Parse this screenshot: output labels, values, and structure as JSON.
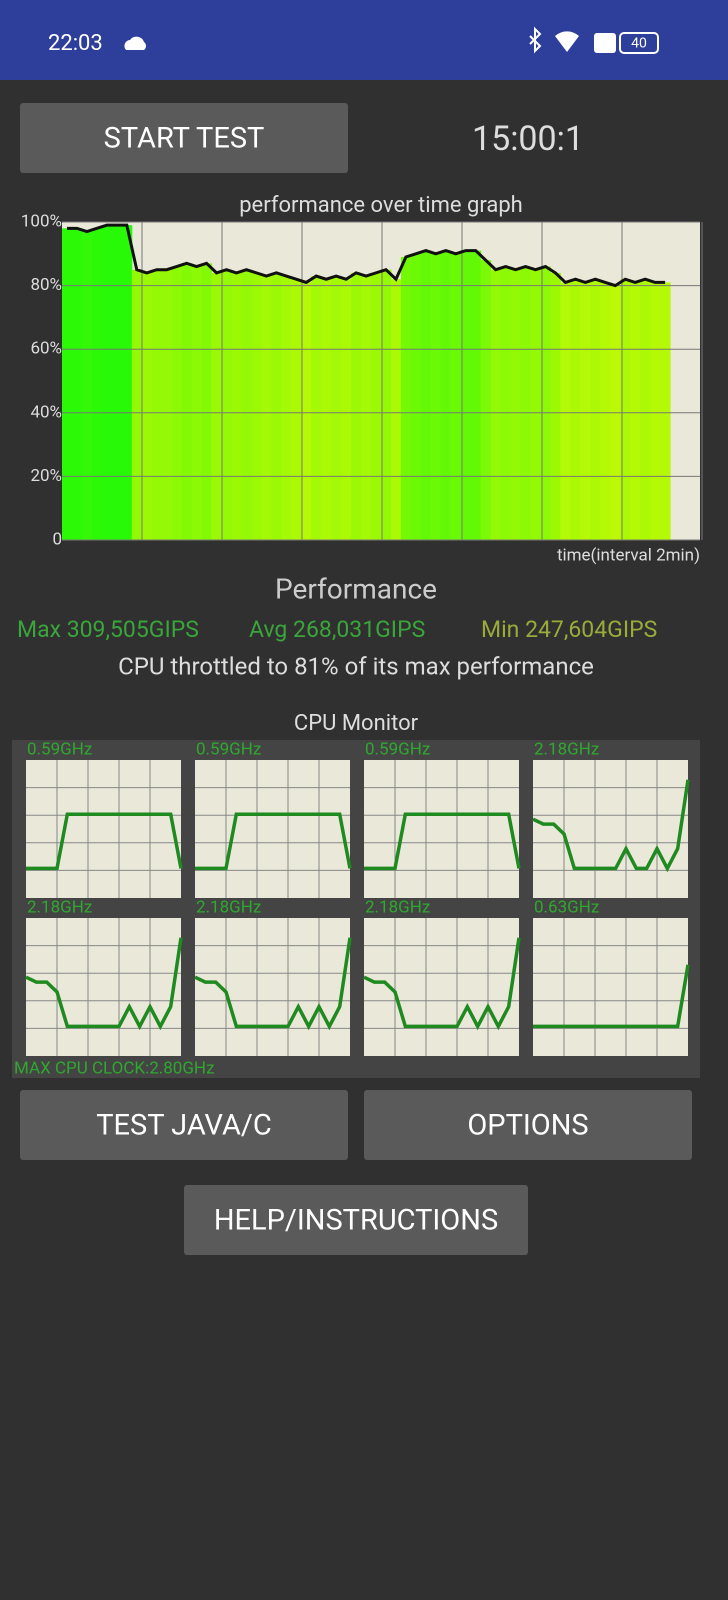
{
  "status_bar": {
    "time": "22:03",
    "battery": "40"
  },
  "buttons": {
    "start": "START TEST",
    "java": "TEST JAVA/C",
    "options": "OPTIONS",
    "help": "HELP/INSTRUCTIONS"
  },
  "timer": "15:00:1",
  "chart_data": {
    "type": "line",
    "title": "performance over time graph",
    "x_label": "time(interval 2min)",
    "values": [
      98,
      98,
      97,
      98,
      99,
      99,
      99,
      85,
      84,
      85,
      85,
      86,
      87,
      86,
      87,
      84,
      85,
      84,
      85,
      84,
      83,
      84,
      83,
      82,
      81,
      83,
      82,
      83,
      82,
      84,
      83,
      84,
      85,
      82,
      89,
      90,
      91,
      90,
      91,
      90,
      91,
      91,
      88,
      85,
      86,
      85,
      86,
      85,
      86,
      84,
      81,
      82,
      81,
      82,
      81,
      80,
      82,
      81,
      82,
      81,
      81
    ],
    "color": "#111111",
    "ylim": [
      0,
      100
    ],
    "yticks": [
      0,
      {
        "value": 20,
        "label": "20%"
      },
      {
        "value": 40,
        "label": "40%"
      },
      {
        "value": 60,
        "label": "60%"
      },
      {
        "value": 80,
        "label": "80%"
      },
      {
        "value": 100,
        "label": "100%"
      }
    ],
    "grid": true
  },
  "performance": {
    "heading": "Performance",
    "max": "Max 309,505GIPS",
    "avg": "Avg 268,031GIPS",
    "min": "Min 247,604GIPS",
    "throttle": "CPU throttled to 81% of its max performance"
  },
  "cpu_monitor": {
    "title": "CPU Monitor",
    "max_clock": "MAX CPU CLOCK:2.80GHz",
    "ylim": [
      0,
      2.8
    ],
    "color": "#1f8a1f",
    "cores": [
      {
        "label": "0.59GHz",
        "values": [
          0.6,
          0.6,
          0.6,
          0.6,
          1.7,
          1.7,
          1.7,
          1.7,
          1.7,
          1.7,
          1.7,
          1.7,
          1.7,
          1.7,
          1.7,
          0.6
        ]
      },
      {
        "label": "0.59GHz",
        "values": [
          0.6,
          0.6,
          0.6,
          0.6,
          1.7,
          1.7,
          1.7,
          1.7,
          1.7,
          1.7,
          1.7,
          1.7,
          1.7,
          1.7,
          1.7,
          0.6
        ]
      },
      {
        "label": "0.59GHz",
        "values": [
          0.6,
          0.6,
          0.6,
          0.6,
          1.7,
          1.7,
          1.7,
          1.7,
          1.7,
          1.7,
          1.7,
          1.7,
          1.7,
          1.7,
          1.7,
          0.6
        ]
      },
      {
        "label": "2.18GHz",
        "values": [
          1.6,
          1.5,
          1.5,
          1.3,
          0.6,
          0.6,
          0.6,
          0.6,
          0.6,
          1.0,
          0.6,
          0.6,
          1.0,
          0.6,
          1.0,
          2.4
        ]
      },
      {
        "label": "2.18GHz",
        "values": [
          1.6,
          1.5,
          1.5,
          1.3,
          0.6,
          0.6,
          0.6,
          0.6,
          0.6,
          0.6,
          1.0,
          0.6,
          1.0,
          0.6,
          1.0,
          2.4
        ]
      },
      {
        "label": "2.18GHz",
        "values": [
          1.6,
          1.5,
          1.5,
          1.3,
          0.6,
          0.6,
          0.6,
          0.6,
          0.6,
          0.6,
          1.0,
          0.6,
          1.0,
          0.6,
          1.0,
          2.4
        ]
      },
      {
        "label": "2.18GHz",
        "values": [
          1.6,
          1.5,
          1.5,
          1.3,
          0.6,
          0.6,
          0.6,
          0.6,
          0.6,
          0.6,
          1.0,
          0.6,
          1.0,
          0.6,
          1.0,
          2.4
        ]
      },
      {
        "label": "0.63GHz",
        "values": [
          0.6,
          0.6,
          0.6,
          0.6,
          0.6,
          0.6,
          0.6,
          0.6,
          0.6,
          0.6,
          0.6,
          0.6,
          0.6,
          0.6,
          0.6,
          1.85
        ]
      }
    ]
  }
}
